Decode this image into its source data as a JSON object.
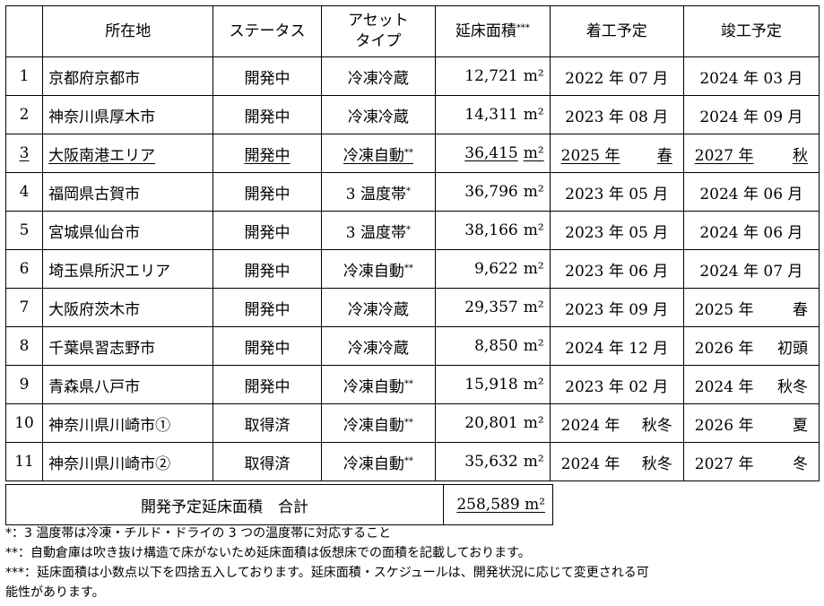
{
  "headers": {
    "no": "",
    "location": "所在地",
    "status": "ステータス",
    "asset_type_line1": "アセット",
    "asset_type_line2": "タイプ",
    "area": "延床面積***",
    "start": "着工予定",
    "complete": "竣工予定"
  },
  "unit": "m²",
  "rows": [
    {
      "no": "1",
      "location": "京都府京都市",
      "status": "開発中",
      "type": "冷凍冷蔵",
      "type_mark": "",
      "area": "12,721",
      "start": "2022 年 07 月",
      "complete": "2024 年 03 月",
      "underline": false
    },
    {
      "no": "2",
      "location": "神奈川県厚木市",
      "status": "開発中",
      "type": "冷凍冷蔵",
      "type_mark": "",
      "area": "14,311",
      "start": "2023 年 08 月",
      "complete": "2024 年 09 月",
      "underline": false
    },
    {
      "no": "3",
      "location": "大阪南港エリア",
      "status": "開発中",
      "type": "冷凍自動",
      "type_mark": "**",
      "area": "36,415",
      "start_year": "2025 年",
      "start_period": "春",
      "complete_year": "2027 年",
      "complete_period": "秋",
      "underline": true
    },
    {
      "no": "4",
      "location": "福岡県古賀市",
      "status": "開発中",
      "type": "3 温度帯",
      "type_mark": "*",
      "area": "36,796",
      "start": "2023 年 05 月",
      "complete": "2024 年 06 月",
      "underline": false
    },
    {
      "no": "5",
      "location": "宮城県仙台市",
      "status": "開発中",
      "type": "3 温度帯",
      "type_mark": "*",
      "area": "38,166",
      "start": "2023 年 05 月",
      "complete": "2024 年 06 月",
      "underline": false
    },
    {
      "no": "6",
      "location": "埼玉県所沢エリア",
      "status": "開発中",
      "type": "冷凍自動",
      "type_mark": "**",
      "area": "9,622",
      "start": "2023 年 06 月",
      "complete": "2024 年 07 月",
      "underline": false
    },
    {
      "no": "7",
      "location": "大阪府茨木市",
      "status": "開発中",
      "type": "冷凍冷蔵",
      "type_mark": "",
      "area": "29,357",
      "start": "2023 年 09 月",
      "complete_year": "2025 年",
      "complete_period": "春",
      "underline": false
    },
    {
      "no": "8",
      "location": "千葉県習志野市",
      "status": "開発中",
      "type": "冷凍冷蔵",
      "type_mark": "",
      "area": "8,850",
      "start": "2024 年 12 月",
      "complete_year": "2026 年",
      "complete_period": "初頭",
      "underline": false
    },
    {
      "no": "9",
      "location": "青森県八戸市",
      "status": "開発中",
      "type": "冷凍自動",
      "type_mark": "**",
      "area": "15,918",
      "start": "2023 年 02 月",
      "complete_year": "2024 年",
      "complete_period": "秋冬",
      "underline": false
    },
    {
      "no": "10",
      "location": "神奈川県川崎市①",
      "status": "取得済",
      "type": "冷凍自動",
      "type_mark": "**",
      "area": "20,801",
      "start_year": "2024 年",
      "start_period": "秋冬",
      "complete_year": "2026 年",
      "complete_period": "夏",
      "underline": false
    },
    {
      "no": "11",
      "location": "神奈川県川崎市②",
      "status": "取得済",
      "type": "冷凍自動",
      "type_mark": "**",
      "area": "35,632",
      "start_year": "2024 年",
      "start_period": "秋冬",
      "complete_year": "2027 年",
      "complete_period": "冬",
      "underline": false
    }
  ],
  "total": {
    "label": "開発予定延床面積　合計",
    "value": "258,589"
  },
  "notes": [
    "*：3 温度帯は冷凍・チルド・ドライの 3 つの温度帯に対応すること",
    "**：自動倉庫は吹き抜け構造で床がないため延床面積は仮想床での面積を記載しております。",
    "***：延床面積は小数点以下を四捨五入しております。延床面積・スケジュールは、開発状況に応じて変更される可",
    "能性があります。"
  ]
}
